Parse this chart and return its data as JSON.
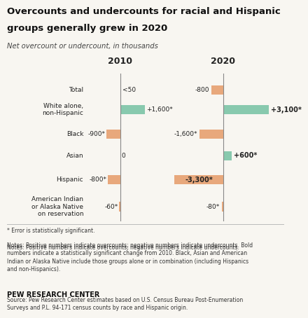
{
  "title_line1": "Overcounts and undercounts for racial and Hispanic",
  "title_line2": "groups generally grew in 2020",
  "subtitle": "Net overcount or undercount, in thousands",
  "categories": [
    "Total",
    "White alone,\nnon-Hispanic",
    "Black",
    "Asian",
    "Hispanic",
    "American Indian\nor Alaska Native\non reservation"
  ],
  "values_2010": [
    50,
    1600,
    -900,
    0,
    -800,
    -60
  ],
  "values_2020": [
    -800,
    3100,
    -1600,
    600,
    -3300,
    -80
  ],
  "labels_2010": [
    "<50",
    "+1,600*",
    "-900*",
    "0",
    "-800*",
    "-60*"
  ],
  "labels_2020": [
    "-800",
    "+3,100*",
    "-1,600*",
    "+600*",
    "-3,300*",
    "-80*"
  ],
  "label_bold_2020": [
    false,
    true,
    false,
    true,
    true,
    false
  ],
  "color_positive": "#88C9AE",
  "color_negative": "#E8A87C",
  "footnote1": "* Error is statistically significant.",
  "footnote2_pre": "Notes: Positive numbers indicate overcounts; negative numbers indicate undercounts. ",
  "footnote2_bold": "Bold",
  "footnote2_post": "\nnumbers indicate a statistically significant change from 2010. Black, Asian and American\nIndian or Alaska Native include those groups alone or in combination (including Hispanics\nand non-Hispanics).",
  "footnote3": "Source: Pew Research Center estimates based on U.S. Census Bureau Post-Enumeration\nSurveys and P.L. 94-171 census counts by race and Hispanic origin.",
  "source_label": "PEW RESEARCH CENTER",
  "bg_color": "#f8f6f1",
  "divider_color": "#888888",
  "text_color": "#222222"
}
